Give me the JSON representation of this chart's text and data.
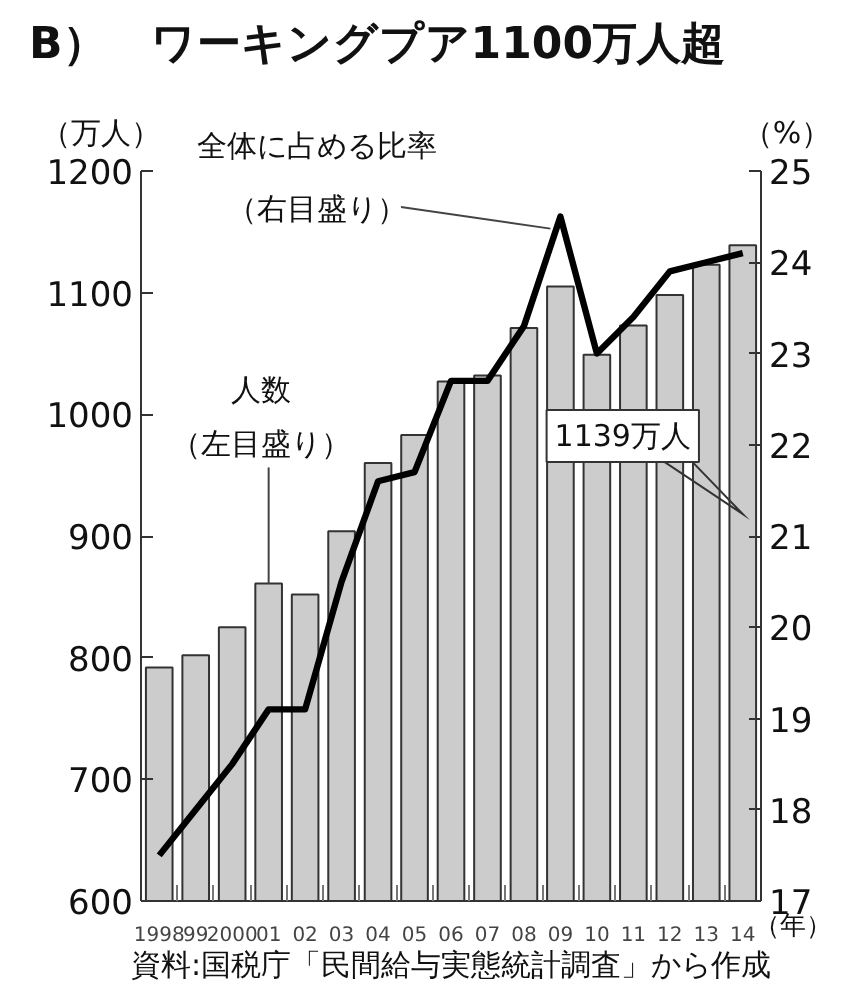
{
  "chart_data": {
    "type": "bar",
    "title": "B）　ワーキングプア1100万人超",
    "xlabel": "（年）",
    "ylabel": "（万人）",
    "y2label": "（%）",
    "categories": [
      "1998",
      "99",
      "2000",
      "01",
      "02",
      "03",
      "04",
      "05",
      "06",
      "07",
      "08",
      "09",
      "10",
      "11",
      "12",
      "13",
      "14"
    ],
    "series": [
      {
        "name": "人数（左目盛り）",
        "color": "#cccccc",
        "values": [
          792,
          802,
          825,
          861,
          852,
          904,
          960,
          983,
          1027,
          1032,
          1071,
          1105,
          1049,
          1073,
          1098,
          1123,
          1139
        ]
      },
      {
        "name": "全体に占める比率（右目盛り）",
        "type": "line",
        "axis": "y2",
        "color": "#000000",
        "values": [
          17.5,
          18.0,
          18.5,
          19.1,
          19.1,
          20.5,
          21.6,
          21.7,
          22.7,
          22.7,
          23.3,
          24.5,
          23.0,
          23.4,
          23.9,
          24.0,
          24.1
        ]
      }
    ],
    "ylim": [
      600,
      1200
    ],
    "yticks": [
      600,
      700,
      800,
      900,
      1000,
      1100,
      1200
    ],
    "y2lim": [
      17,
      25
    ],
    "y2ticks": [
      17,
      18,
      19,
      20,
      21,
      22,
      23,
      24,
      25
    ],
    "annotations": [
      "1139万人",
      "資料:国税庁「民間給与実態統計調査」から作成"
    ],
    "grid": false
  }
}
